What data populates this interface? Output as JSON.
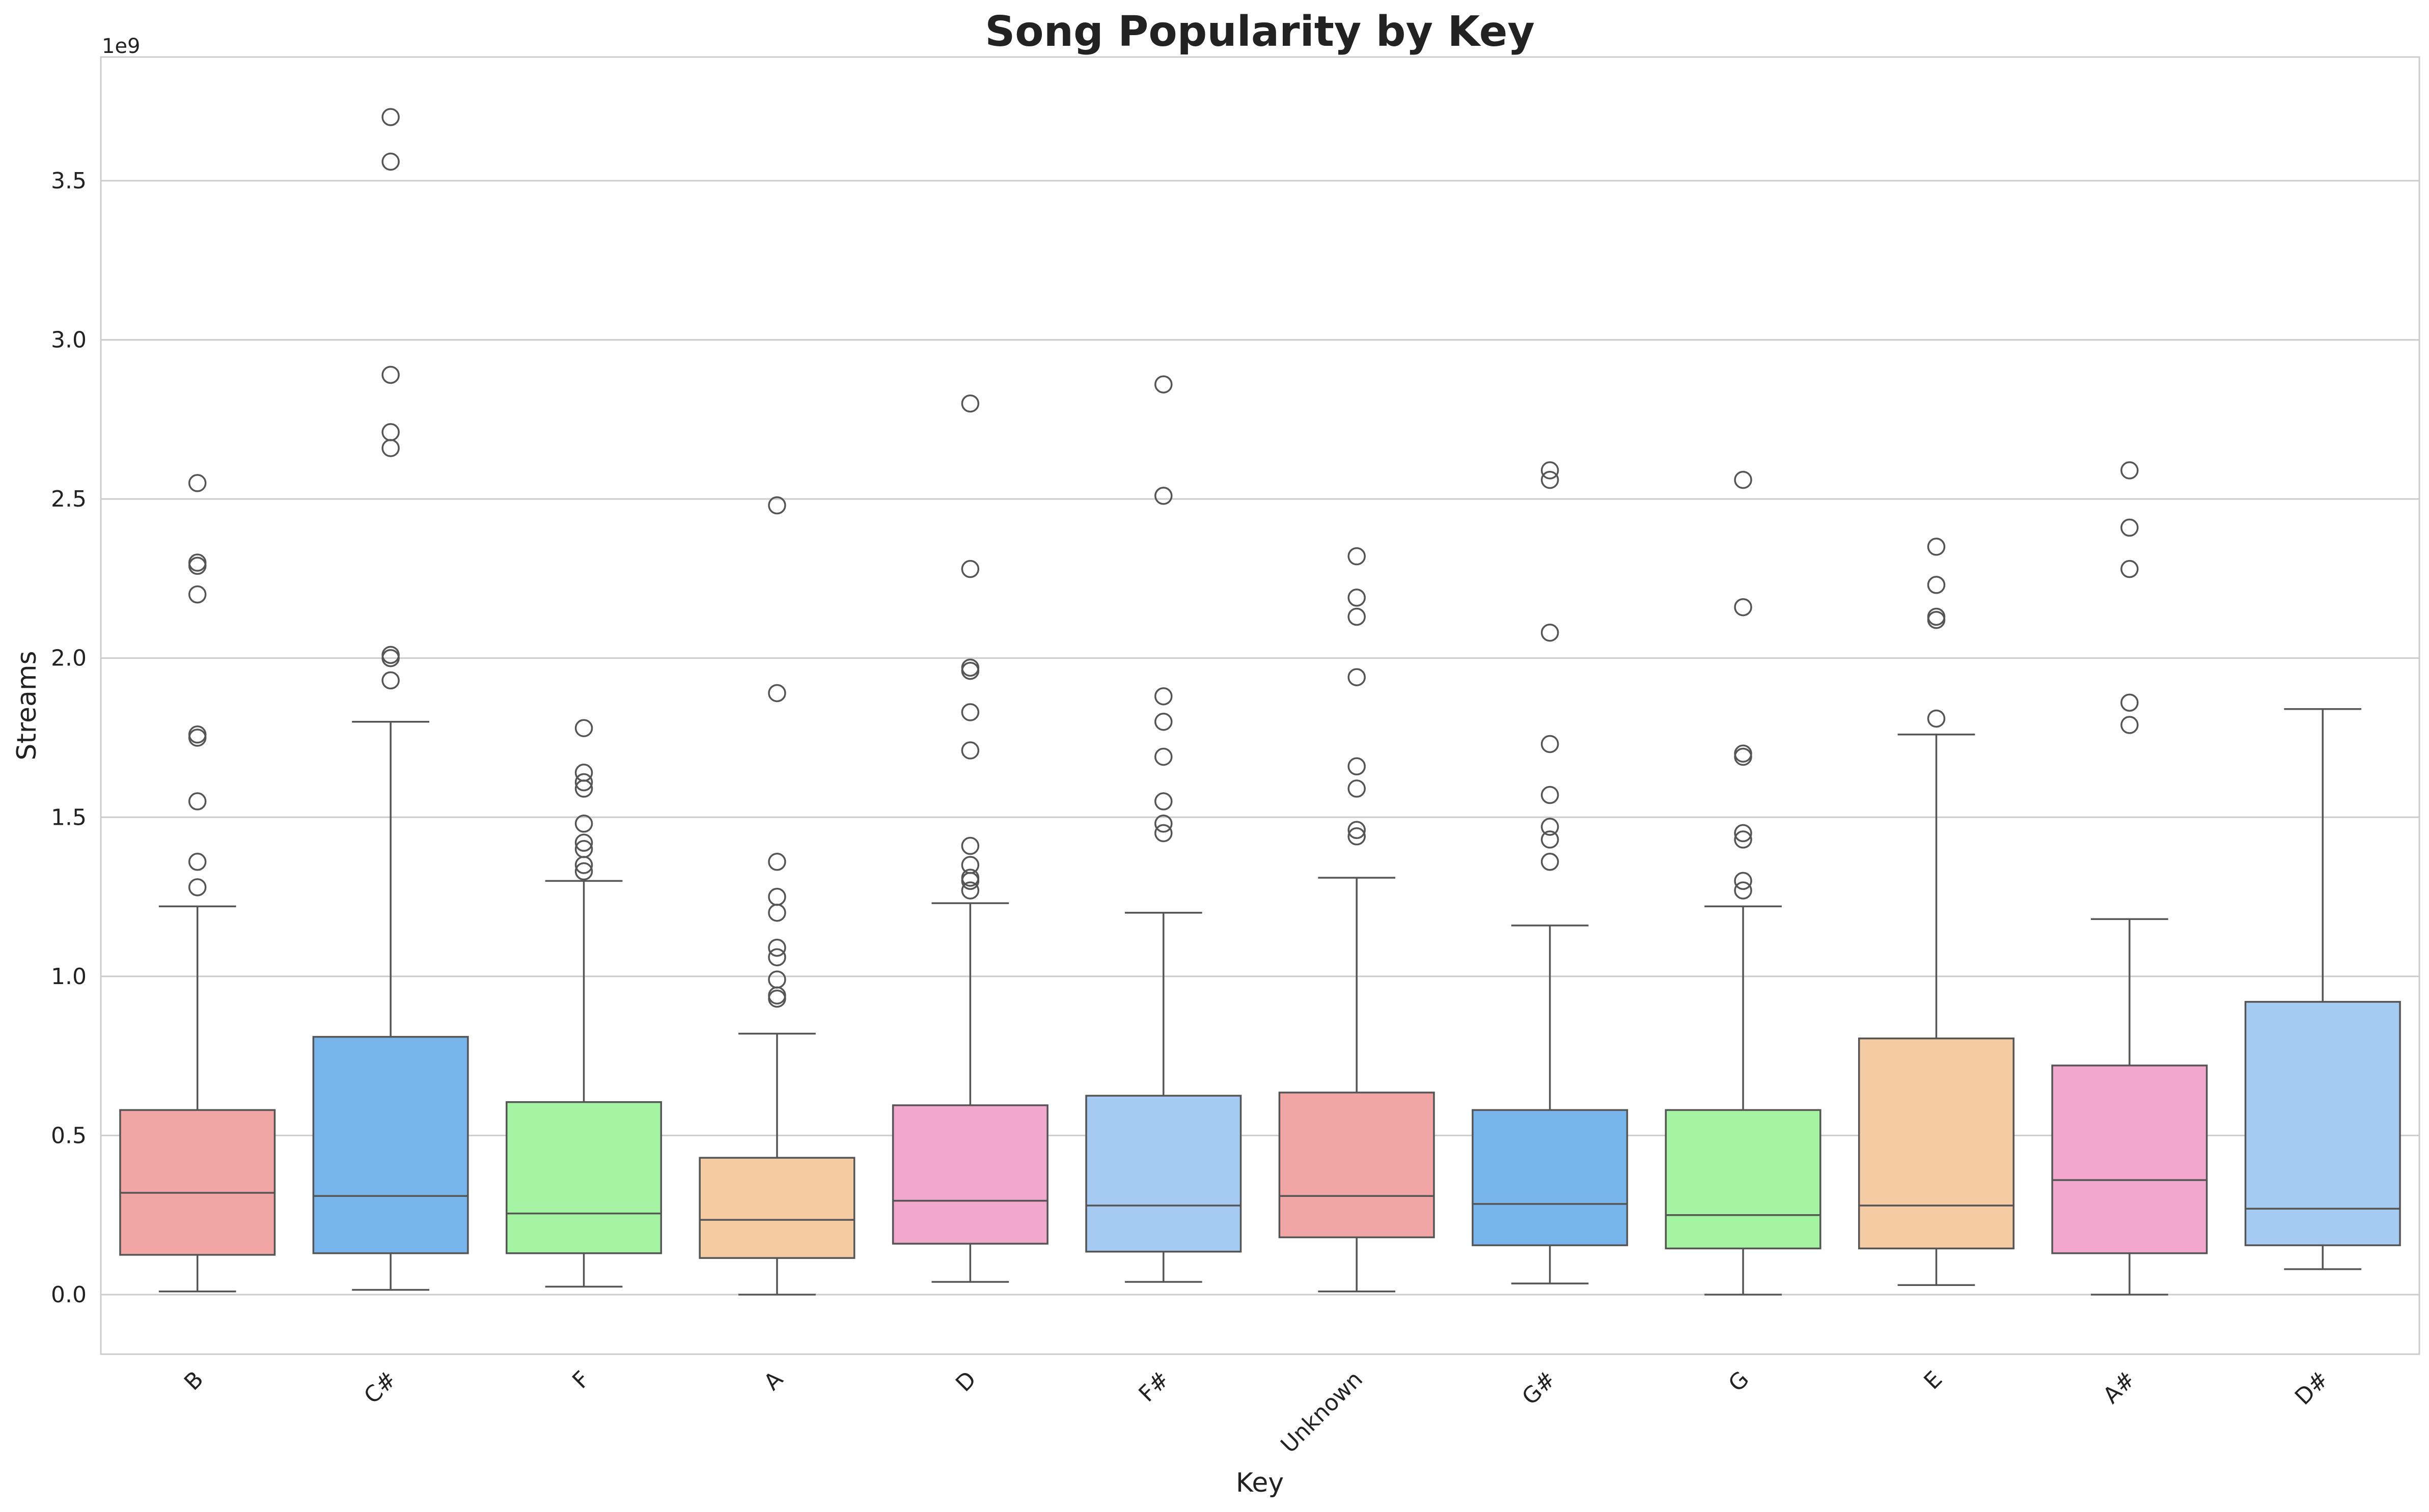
{
  "chart_data": {
    "type": "box",
    "title": "Song Popularity by Key",
    "xlabel": "Key",
    "ylabel": "Streams",
    "y_offset_label": "1e9",
    "ylim": [
      -0.19,
      3.9
    ],
    "yticks": [
      0.0,
      0.5,
      1.0,
      1.5,
      2.0,
      2.5,
      3.0,
      3.5
    ],
    "ytick_labels": [
      "0.0",
      "0.5",
      "1.0",
      "1.5",
      "2.0",
      "2.5",
      "3.0",
      "3.5"
    ],
    "y_unit_multiplier": 1000000000,
    "grid": "horizontal",
    "categories": [
      "B",
      "C#",
      "F",
      "A",
      "D",
      "F#",
      "Unknown",
      "G#",
      "G",
      "E",
      "A#",
      "D#"
    ],
    "colors": [
      "#f2a5a5",
      "#78b4ec",
      "#a4f3a2",
      "#f5cba3",
      "#f1a8cc",
      "#a5cbf2",
      "#f2a5a5",
      "#78b4ec",
      "#a4f3a2",
      "#f5cba3",
      "#f1a8cc",
      "#a5cbf2"
    ],
    "boxes": [
      {
        "key": "B",
        "whislo": 0.01,
        "q1": 0.125,
        "med": 0.32,
        "q3": 0.58,
        "whishi": 1.22,
        "fliers": [
          1.28,
          1.36,
          1.55,
          1.75,
          1.76,
          2.2,
          2.29,
          2.3,
          2.55
        ]
      },
      {
        "key": "C#",
        "whislo": 0.015,
        "q1": 0.13,
        "med": 0.31,
        "q3": 0.81,
        "whishi": 1.8,
        "fliers": [
          1.93,
          2.0,
          2.01,
          2.66,
          2.71,
          2.89,
          3.56,
          3.7
        ]
      },
      {
        "key": "F",
        "whislo": 0.025,
        "q1": 0.13,
        "med": 0.255,
        "q3": 0.605,
        "whishi": 1.3,
        "fliers": [
          1.33,
          1.35,
          1.4,
          1.42,
          1.48,
          1.59,
          1.61,
          1.64,
          1.78
        ]
      },
      {
        "key": "A",
        "whislo": 0.0,
        "q1": 0.115,
        "med": 0.235,
        "q3": 0.43,
        "whishi": 0.82,
        "fliers": [
          0.93,
          0.94,
          0.99,
          1.06,
          1.09,
          1.2,
          1.25,
          1.36,
          1.89,
          2.48
        ]
      },
      {
        "key": "D",
        "whislo": 0.04,
        "q1": 0.16,
        "med": 0.295,
        "q3": 0.595,
        "whishi": 1.23,
        "fliers": [
          1.27,
          1.3,
          1.31,
          1.35,
          1.41,
          1.71,
          1.83,
          1.96,
          1.97,
          2.28,
          2.8
        ]
      },
      {
        "key": "F#",
        "whislo": 0.04,
        "q1": 0.135,
        "med": 0.28,
        "q3": 0.625,
        "whishi": 1.2,
        "fliers": [
          1.45,
          1.48,
          1.55,
          1.69,
          1.8,
          1.88,
          2.51,
          2.86
        ]
      },
      {
        "key": "Unknown",
        "whislo": 0.01,
        "q1": 0.18,
        "med": 0.31,
        "q3": 0.635,
        "whishi": 1.31,
        "fliers": [
          1.44,
          1.46,
          1.59,
          1.66,
          1.94,
          2.13,
          2.19,
          2.32
        ]
      },
      {
        "key": "G#",
        "whislo": 0.035,
        "q1": 0.155,
        "med": 0.285,
        "q3": 0.58,
        "whishi": 1.16,
        "fliers": [
          1.36,
          1.43,
          1.47,
          1.57,
          1.73,
          2.08,
          2.56,
          2.59
        ]
      },
      {
        "key": "G",
        "whislo": 0.0,
        "q1": 0.145,
        "med": 0.25,
        "q3": 0.58,
        "whishi": 1.22,
        "fliers": [
          1.27,
          1.3,
          1.43,
          1.45,
          1.69,
          1.7,
          2.16,
          2.56
        ]
      },
      {
        "key": "E",
        "whislo": 0.03,
        "q1": 0.145,
        "med": 0.28,
        "q3": 0.805,
        "whishi": 1.76,
        "fliers": [
          1.81,
          2.12,
          2.13,
          2.23,
          2.35
        ]
      },
      {
        "key": "A#",
        "whislo": 0.0,
        "q1": 0.13,
        "med": 0.36,
        "q3": 0.72,
        "whishi": 1.18,
        "fliers": [
          1.79,
          1.86,
          2.28,
          2.41,
          2.59
        ]
      },
      {
        "key": "D#",
        "whislo": 0.08,
        "q1": 0.155,
        "med": 0.27,
        "q3": 0.92,
        "whishi": 1.84,
        "fliers": []
      }
    ]
  }
}
